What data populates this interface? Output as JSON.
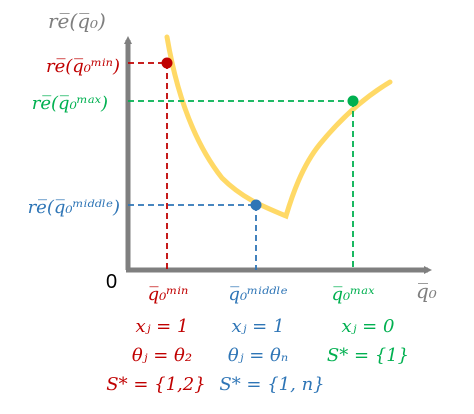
{
  "colors": {
    "axis": "#7f7f7f",
    "curve": "#ffd966",
    "min": "#c00000",
    "middle": "#2e75b6",
    "max": "#00b050",
    "text": "#222222"
  },
  "axes": {
    "y_label": "re̅(q̅₀)",
    "x_label": "q̅₀",
    "origin": "0"
  },
  "y_labels": {
    "min": "re̅(q̅₀ᵐⁱⁿ)",
    "max": "re̅(q̅₀ᵐᵃˣ)",
    "middle": "re̅(q̅₀ᵐⁱᵈᵈˡᵉ)"
  },
  "x_labels": {
    "min": "q̅₀ᵐⁱⁿ",
    "middle": "q̅₀ᵐⁱᵈᵈˡᵉ",
    "max": "q̅₀ᵐᵃˣ"
  },
  "notes": {
    "min": {
      "x": "xⱼ = 1",
      "theta": "θⱼ = θ₂",
      "s": "S* = {1,2}"
    },
    "middle": {
      "x": "xⱼ = 1",
      "theta": "θⱼ = θₙ",
      "s": "S* = {1, n}"
    },
    "max": {
      "x": "xⱼ = 0",
      "s": "S* = {1}"
    }
  }
}
